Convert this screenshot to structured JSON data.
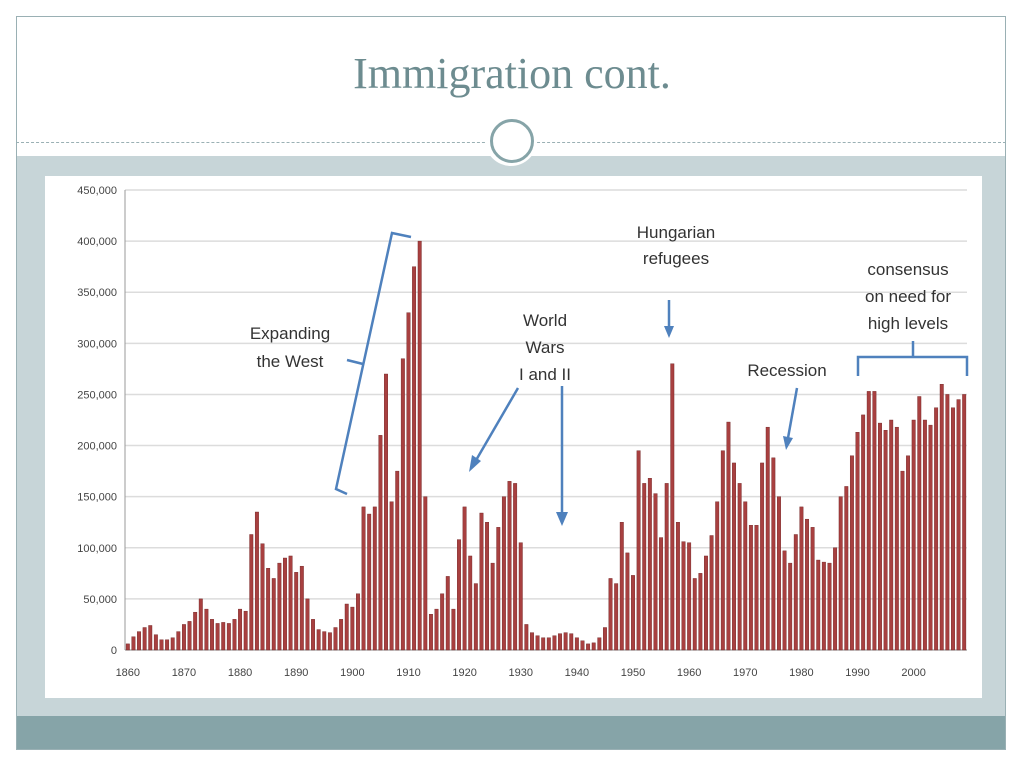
{
  "slide": {
    "title": "Immigration cont."
  },
  "colors": {
    "bar": "#a84040",
    "bar_dark": "#6e2121",
    "annotation": "#4f81bd",
    "grid": "#dcdcdc",
    "title": "#6d8c90",
    "band": "#c7d5d8",
    "footer": "#86a4a8"
  },
  "chart_data": {
    "type": "bar",
    "title": "",
    "xlabel": "",
    "ylabel": "",
    "ylim": [
      0,
      450000
    ],
    "yticks": [
      0,
      50000,
      100000,
      150000,
      200000,
      250000,
      300000,
      350000,
      400000,
      450000
    ],
    "ytick_labels": [
      "0",
      "50,000",
      "100,000",
      "150,000",
      "200,000",
      "250,000",
      "300,000",
      "350,000",
      "400,000",
      "450,000"
    ],
    "xticks": [
      1860,
      1870,
      1880,
      1890,
      1900,
      1910,
      1920,
      1930,
      1940,
      1950,
      1960,
      1970,
      1980,
      1990,
      2000
    ],
    "xlim": [
      1860,
      2010
    ],
    "grid": true,
    "x": [
      1860,
      1861,
      1862,
      1863,
      1864,
      1865,
      1866,
      1867,
      1868,
      1869,
      1870,
      1871,
      1872,
      1873,
      1874,
      1875,
      1876,
      1877,
      1878,
      1879,
      1880,
      1881,
      1882,
      1883,
      1884,
      1885,
      1886,
      1887,
      1888,
      1889,
      1890,
      1891,
      1892,
      1893,
      1894,
      1895,
      1896,
      1897,
      1898,
      1899,
      1900,
      1901,
      1902,
      1903,
      1904,
      1905,
      1906,
      1907,
      1908,
      1909,
      1910,
      1911,
      1912,
      1913,
      1914,
      1915,
      1916,
      1917,
      1918,
      1919,
      1920,
      1921,
      1922,
      1923,
      1924,
      1925,
      1926,
      1927,
      1928,
      1929,
      1930,
      1931,
      1932,
      1933,
      1934,
      1935,
      1936,
      1937,
      1938,
      1939,
      1940,
      1941,
      1942,
      1943,
      1944,
      1945,
      1946,
      1947,
      1948,
      1949,
      1950,
      1951,
      1952,
      1953,
      1954,
      1955,
      1956,
      1957,
      1958,
      1959,
      1960,
      1961,
      1962,
      1963,
      1964,
      1965,
      1966,
      1967,
      1968,
      1969,
      1970,
      1971,
      1972,
      1973,
      1974,
      1975,
      1976,
      1977,
      1978,
      1979,
      1980,
      1981,
      1982,
      1983,
      1984,
      1985,
      1986,
      1987,
      1988,
      1989,
      1990,
      1991,
      1992,
      1993,
      1994,
      1995,
      1996,
      1997,
      1998,
      1999,
      2000,
      2001,
      2002,
      2003,
      2004,
      2005,
      2006,
      2007,
      2008,
      2009
    ],
    "values": [
      6000,
      13000,
      18000,
      22000,
      24000,
      15000,
      10000,
      10000,
      12000,
      18000,
      25000,
      28000,
      37000,
      50000,
      40000,
      30000,
      26000,
      27000,
      26000,
      30000,
      40000,
      38000,
      113000,
      135000,
      104000,
      80000,
      70000,
      85000,
      90000,
      92000,
      76000,
      82000,
      50000,
      30000,
      20000,
      18000,
      17000,
      22000,
      30000,
      45000,
      42000,
      55000,
      140000,
      133000,
      140000,
      210000,
      270000,
      145000,
      175000,
      285000,
      330000,
      375000,
      400000,
      150000,
      35000,
      40000,
      55000,
      72000,
      40000,
      108000,
      140000,
      92000,
      65000,
      134000,
      125000,
      85000,
      120000,
      150000,
      165000,
      163000,
      105000,
      25000,
      17000,
      14000,
      12000,
      12000,
      14000,
      16000,
      17000,
      16000,
      12000,
      9000,
      6000,
      7000,
      12000,
      22000,
      70000,
      65000,
      125000,
      95000,
      73000,
      195000,
      163000,
      168000,
      153000,
      110000,
      163000,
      280000,
      125000,
      106000,
      105000,
      70000,
      75000,
      92000,
      112000,
      145000,
      195000,
      223000,
      183000,
      163000,
      145000,
      122000,
      122000,
      183000,
      218000,
      188000,
      150000,
      97000,
      85000,
      113000,
      140000,
      128000,
      120000,
      88000,
      86000,
      85000,
      100000,
      150000,
      160000,
      190000,
      213000,
      230000,
      253000,
      253000,
      222000,
      215000,
      225000,
      218000,
      175000,
      190000,
      225000,
      248000,
      225000,
      220000,
      237000,
      260000,
      250000,
      237000,
      245000,
      250000
    ]
  },
  "annotations": {
    "expanding_west": [
      "Expanding",
      "the West"
    ],
    "world_wars": [
      "World",
      "Wars",
      "I and II"
    ],
    "hungarian": [
      "Hungarian",
      "refugees"
    ],
    "recession": [
      "Recession"
    ],
    "consensus": [
      "consensus",
      "on need for",
      "high levels"
    ]
  }
}
